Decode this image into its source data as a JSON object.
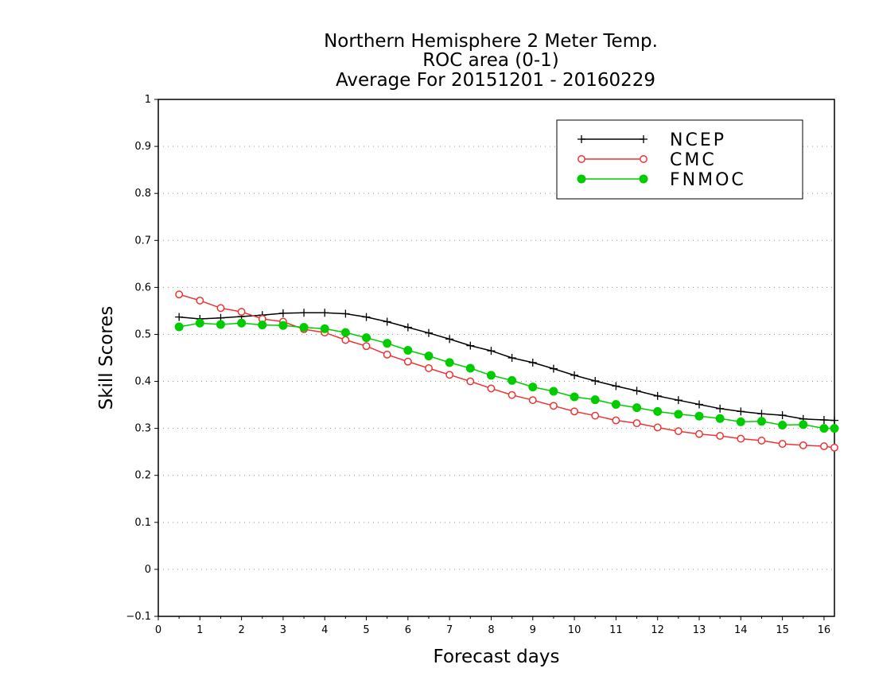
{
  "chart_data": {
    "type": "line",
    "title": "Northern Hemisphere 2 Meter Temp.",
    "subtitle": "ROC area (0-1)",
    "subtitle2": "Average For 20151201 - 20160229",
    "xlabel": "Forecast days",
    "ylabel": "Skill Scores",
    "xlim": [
      0,
      16.25
    ],
    "ylim": [
      -0.1,
      1.0
    ],
    "x_ticks": [
      "0",
      "1",
      "2",
      "3",
      "4",
      "5",
      "6",
      "7",
      "8",
      "9",
      "10",
      "11",
      "12",
      "13",
      "14",
      "15",
      "16"
    ],
    "y_ticks": [
      "−0.1",
      "0",
      "0.1",
      "0.2",
      "0.3",
      "0.4",
      "0.5",
      "0.6",
      "0.7",
      "0.8",
      "0.9",
      "1"
    ],
    "grid": true,
    "legend_position": "top-right",
    "x": [
      0.5,
      1,
      1.5,
      2,
      2.5,
      3,
      3.5,
      4,
      4.5,
      5,
      5.5,
      6,
      6.5,
      7,
      7.5,
      8,
      8.5,
      9,
      9.5,
      10,
      10.5,
      11,
      11.5,
      12,
      12.5,
      13,
      13.5,
      14,
      14.5,
      15,
      15.5,
      16,
      16.25
    ],
    "series": [
      {
        "name": "NCEP",
        "color": "#000000",
        "marker": "plus",
        "values": [
          0.537,
          0.533,
          0.535,
          0.538,
          0.541,
          0.545,
          0.546,
          0.546,
          0.544,
          0.537,
          0.527,
          0.515,
          0.503,
          0.49,
          0.476,
          0.465,
          0.45,
          0.44,
          0.427,
          0.413,
          0.401,
          0.39,
          0.38,
          0.369,
          0.36,
          0.351,
          0.342,
          0.336,
          0.331,
          0.328,
          0.32,
          0.318,
          0.317
        ]
      },
      {
        "name": "CMC",
        "color": "#ee3333",
        "marker": "open-circle",
        "values": [
          0.585,
          0.572,
          0.556,
          0.548,
          0.533,
          0.527,
          0.511,
          0.504,
          0.488,
          0.475,
          0.457,
          0.442,
          0.428,
          0.414,
          0.4,
          0.385,
          0.371,
          0.36,
          0.348,
          0.336,
          0.327,
          0.317,
          0.311,
          0.302,
          0.294,
          0.288,
          0.284,
          0.278,
          0.274,
          0.267,
          0.264,
          0.262,
          0.259
        ]
      },
      {
        "name": "FNMOC",
        "color": "#00cc00",
        "marker": "filled-circle",
        "values": [
          0.516,
          0.524,
          0.521,
          0.524,
          0.52,
          0.519,
          0.515,
          0.512,
          0.504,
          0.493,
          0.481,
          0.466,
          0.454,
          0.44,
          0.428,
          0.413,
          0.402,
          0.388,
          0.379,
          0.367,
          0.361,
          0.351,
          0.344,
          0.336,
          0.33,
          0.326,
          0.321,
          0.314,
          0.315,
          0.307,
          0.308,
          0.3,
          0.3
        ]
      }
    ]
  }
}
